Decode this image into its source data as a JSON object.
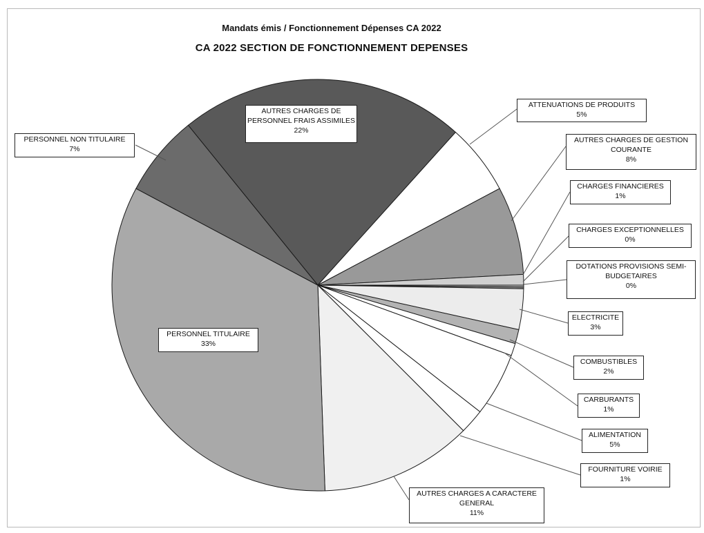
{
  "chart_data": {
    "type": "pie",
    "title": "Mandats émis / Fonctionnement  Dépenses CA 2022",
    "subtitle": "CA 2022   SECTION DE FONCTIONNEMENT   DEPENSES",
    "legend": "none",
    "slices": [
      {
        "name": "AUTRES CHARGES DE PERSONNEL FRAIS ASSIMILES",
        "value": 22,
        "label": "22%",
        "color": "#595959"
      },
      {
        "name": "ATTENUATIONS DE PRODUITS",
        "value": 5,
        "label": "5%",
        "color": "#ffffff"
      },
      {
        "name": "AUTRES CHARGES DE GESTION COURANTE",
        "value": 8,
        "label": "8%",
        "color": "#999999"
      },
      {
        "name": "CHARGES FINANCIERES",
        "value": 1,
        "label": "1%",
        "color": "#d0d0d0"
      },
      {
        "name": "CHARGES EXCEPTIONNELLES",
        "value": 0,
        "label": "0%",
        "color": "#bdbdbd"
      },
      {
        "name": "DOTATIONS PROVISIONS SEMI-BUDGETAIRES",
        "value": 0,
        "label": "0%",
        "color": "#8c8c8c"
      },
      {
        "name": "ELECTRICITE",
        "value": 3,
        "label": "3%",
        "color": "#ececec"
      },
      {
        "name": "COMBUSTIBLES",
        "value": 2,
        "label": "2%",
        "color": "#b3b3b3"
      },
      {
        "name": "CARBURANTS",
        "value": 1,
        "label": "1%",
        "color": "#ffffff"
      },
      {
        "name": "ALIMENTATION",
        "value": 5,
        "label": "5%",
        "color": "#ffffff"
      },
      {
        "name": "FOURNITURE VOIRIE",
        "value": 1,
        "label": "1%",
        "color": "#ffffff"
      },
      {
        "name": "AUTRES CHARGES A CARACTERE GENERAL",
        "value": 11,
        "label": "11%",
        "color": "#f0f0f0"
      },
      {
        "name": "PERSONNEL TITULAIRE",
        "value": 33,
        "label": "33%",
        "color": "#a9a9a9"
      },
      {
        "name": "PERSONNEL NON TITULAIRE",
        "value": 7,
        "label": "7%",
        "color": "#6b6b6b"
      }
    ]
  }
}
